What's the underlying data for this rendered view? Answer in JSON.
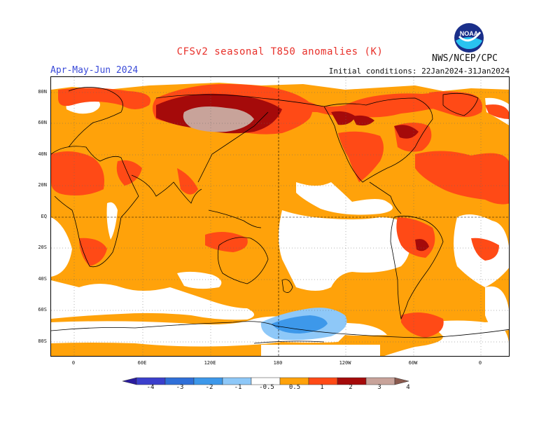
{
  "title": "CFSv2 seasonal T850 anomalies (K)",
  "season": "Apr-May-Jun 2024",
  "agency": "NWS/NCEP/CPC",
  "initial_conditions": "Initial conditions: 22Jan2024-31Jan2024",
  "logo_text": "NOAA",
  "lat_labels": [
    "80N",
    "60N",
    "40N",
    "20N",
    "EQ",
    "20S",
    "40S",
    "60S",
    "80S"
  ],
  "lon_labels": [
    "0",
    "60E",
    "120E",
    "180",
    "120W",
    "60W",
    "0"
  ],
  "colorbar": {
    "levels": [
      "-4",
      "-3",
      "-2",
      "-1",
      "-0.5",
      "0.5",
      "1",
      "2",
      "3",
      "4"
    ],
    "colors": [
      "#2a1b9e",
      "#3b3fcc",
      "#2f6fd8",
      "#3d98ea",
      "#8ec8f8",
      "#ffffff",
      "#ffa20a",
      "#ff4a16",
      "#a50a0a",
      "#c8a39a",
      "#8a5a4e"
    ]
  },
  "anomaly_colors": {
    "c05": "#ffa20a",
    "c1": "#ff4a16",
    "c2": "#a50a0a",
    "c3": "#c8a39a",
    "n05": "#8ec8f8",
    "n1": "#3d98ea"
  }
}
